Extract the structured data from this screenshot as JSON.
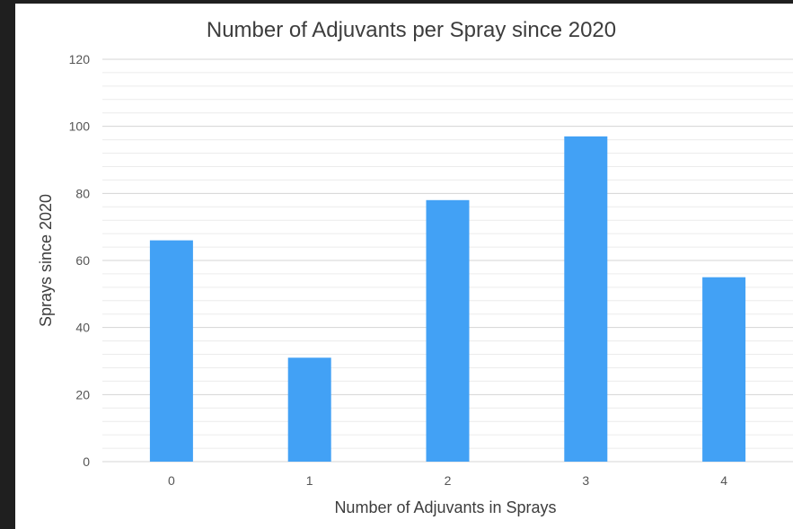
{
  "chart_data": {
    "type": "bar",
    "title": "Number of Adjuvants per Spray since 2020",
    "xlabel": "Number of Adjuvants in Sprays",
    "ylabel": "Sprays since 2020",
    "categories": [
      "0",
      "1",
      "2",
      "3",
      "4"
    ],
    "values": [
      66,
      31,
      78,
      97,
      55
    ],
    "ylim": [
      0,
      120
    ],
    "yticks": [
      0,
      20,
      40,
      60,
      80,
      100,
      120
    ],
    "grid": true,
    "legend": "none",
    "colors": {
      "bar": "#42A1F5",
      "major_grid": "#d4d4d4",
      "minor_grid": "#ececec",
      "background": "#ffffff",
      "page": "#1f1f1f"
    }
  }
}
